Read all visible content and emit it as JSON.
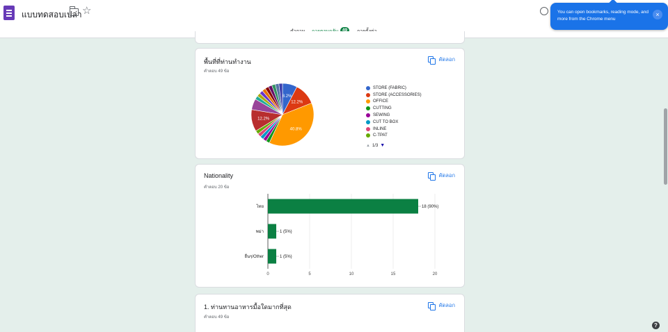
{
  "header": {
    "doc_title": "แบบทดสอบเปล่า",
    "tabs": [
      {
        "label": "คำถาม"
      },
      {
        "label": "การตอบกลับ",
        "badge": "49"
      },
      {
        "label": "การตั้งค่า"
      }
    ]
  },
  "tooltip": {
    "text": "You can open bookmarks, reading mode, and more from the Chrome menu",
    "close_label": "×"
  },
  "cards": {
    "workplace": {
      "title": "พื้นที่ที่ท่านทำงาน",
      "subtitle": "คำตอบ 49 ข้อ",
      "copy_label": "คัดลอก",
      "pager": "1/3"
    },
    "nationality": {
      "title": "Nationality",
      "subtitle": "คำตอบ 20 ข้อ",
      "copy_label": "คัดลอก"
    },
    "food": {
      "title": "1. ท่านทานอาหารมื้อใดมากที่สุด",
      "subtitle": "คำตอบ 49 ข้อ",
      "copy_label": "คัดลอก"
    }
  },
  "chart_data": [
    {
      "type": "pie",
      "legend_position": "right",
      "legend": [
        "STORE (FABRIC)",
        "STORE (ACCESSORIES)",
        "OFFICE",
        "CUTTING",
        "SEWING",
        "CUT TO BOX",
        "INLINE",
        "C-TPAT"
      ],
      "slices": [
        {
          "name": "STORE (FABRIC)",
          "value": 8.2,
          "color": "#3366cc",
          "label": "8.2%"
        },
        {
          "name": "STORE (ACCESSORIES)",
          "value": 12.2,
          "color": "#dc3912",
          "label": "12.2%"
        },
        {
          "name": "OFFICE",
          "value": 40.8,
          "color": "#ff9900",
          "label": "40.8%"
        },
        {
          "name": "CUTTING",
          "value": 2.0,
          "color": "#109618",
          "label": ""
        },
        {
          "name": "SEWING",
          "value": 2.0,
          "color": "#990099",
          "label": ""
        },
        {
          "name": "CUT TO BOX",
          "value": 2.0,
          "color": "#0099c6",
          "label": ""
        },
        {
          "name": "INLINE",
          "value": 2.0,
          "color": "#dd4477",
          "label": ""
        },
        {
          "name": "C-TPAT",
          "value": 2.0,
          "color": "#66aa00",
          "label": ""
        },
        {
          "name": "",
          "value": 12.2,
          "color": "#b82e2e",
          "label": "12.2%"
        },
        {
          "name": "",
          "value": 6.1,
          "color": "#994499",
          "label": ""
        },
        {
          "name": "",
          "value": 2.0,
          "color": "#22aa99",
          "label": ""
        },
        {
          "name": "",
          "value": 2.0,
          "color": "#aaaa11",
          "label": ""
        },
        {
          "name": "",
          "value": 2.0,
          "color": "#6633cc",
          "label": ""
        },
        {
          "name": "",
          "value": 2.0,
          "color": "#e67300",
          "label": ""
        },
        {
          "name": "",
          "value": 2.0,
          "color": "#8b0707",
          "label": ""
        },
        {
          "name": "",
          "value": 2.0,
          "color": "#651067",
          "label": ""
        },
        {
          "name": "",
          "value": 2.0,
          "color": "#329262",
          "label": ""
        },
        {
          "name": "",
          "value": 2.0,
          "color": "#5574a6",
          "label": ""
        },
        {
          "name": "",
          "value": 2.0,
          "color": "#3b3eac",
          "label": ""
        }
      ]
    },
    {
      "type": "bar",
      "orientation": "horizontal",
      "categories": [
        "ไทย",
        "พม่า",
        "อื่นๆ/Other"
      ],
      "values": [
        18,
        1,
        1
      ],
      "value_labels": [
        "18 (90%)",
        "1 (5%)",
        "1 (5%)"
      ],
      "xlim": [
        0,
        20
      ],
      "xticks": [
        0,
        5,
        10,
        15,
        20
      ],
      "grid": true,
      "bar_color": "#0b8043"
    }
  ]
}
